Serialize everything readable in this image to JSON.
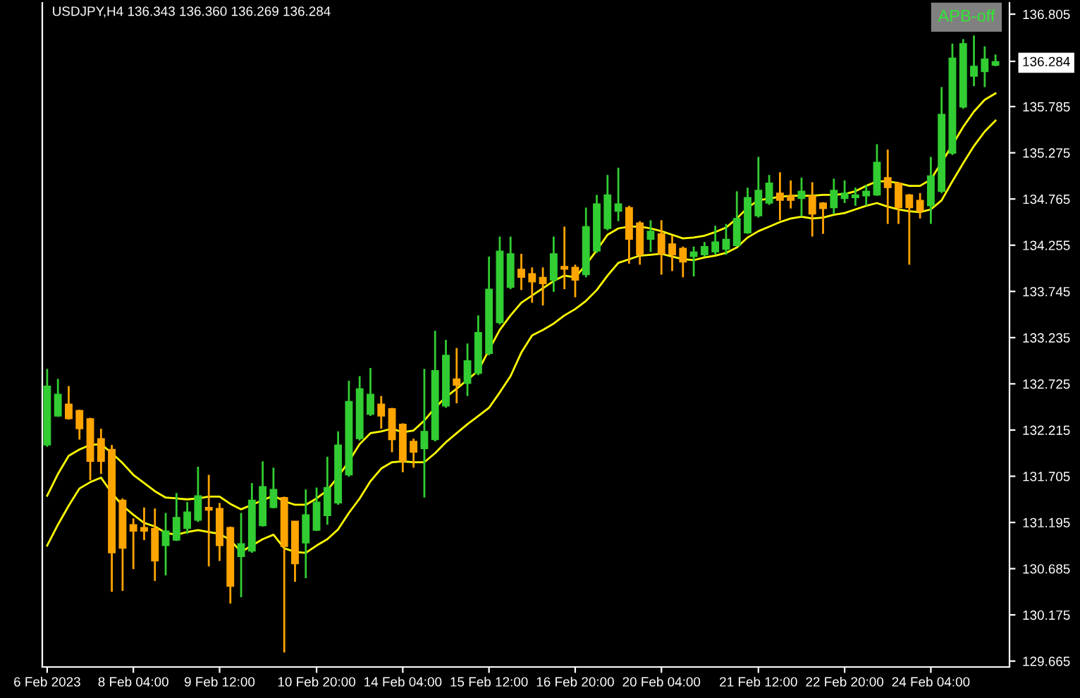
{
  "chart_data": {
    "type": "candlestick",
    "title": "USDJPY,H4 136.343 136.360 136.269 136.284",
    "annotations": [
      "APB-off"
    ],
    "categories": [
      "6 Feb 2023",
      null,
      null,
      null,
      null,
      null,
      null,
      null,
      "8 Feb 04:00",
      null,
      null,
      null,
      null,
      null,
      null,
      null,
      "9 Feb 12:00",
      null,
      null,
      null,
      null,
      null,
      null,
      null,
      null,
      "10 Feb 20:00",
      null,
      null,
      null,
      null,
      null,
      null,
      null,
      "14 Feb 04:00",
      null,
      null,
      null,
      null,
      null,
      null,
      null,
      "15 Feb 12:00",
      null,
      null,
      null,
      null,
      null,
      null,
      null,
      "16 Feb 20:00",
      null,
      null,
      null,
      null,
      null,
      null,
      null,
      "20 Feb 04:00",
      null,
      null,
      null,
      null,
      null,
      null,
      null,
      null,
      "21 Feb 12:00",
      null,
      null,
      null,
      null,
      null,
      null,
      null,
      "22 Feb 20:00",
      null,
      null,
      null,
      null,
      null,
      null,
      null,
      "24 Feb 04:00",
      null,
      null,
      null,
      null,
      null,
      null
    ],
    "ohlc": [
      [
        132.05,
        132.89,
        132.03,
        132.7
      ],
      [
        132.37,
        132.78,
        132.36,
        132.61
      ],
      [
        132.5,
        132.7,
        132.33,
        132.34
      ],
      [
        132.43,
        132.44,
        132.11,
        132.23
      ],
      [
        132.34,
        132.35,
        131.66,
        131.87
      ],
      [
        132.12,
        132.23,
        131.73,
        131.87
      ],
      [
        132.0,
        132.05,
        130.43,
        130.86
      ],
      [
        131.44,
        131.46,
        130.44,
        130.91
      ],
      [
        131.17,
        131.24,
        130.68,
        131.1
      ],
      [
        131.14,
        131.36,
        131.0,
        131.1
      ],
      [
        131.13,
        131.35,
        130.55,
        130.77
      ],
      [
        130.94,
        131.3,
        130.61,
        131.1
      ],
      [
        131.0,
        131.52,
        130.99,
        131.25
      ],
      [
        131.13,
        131.42,
        131.07,
        131.31
      ],
      [
        131.22,
        131.81,
        131.2,
        131.49
      ],
      [
        131.36,
        131.72,
        130.71,
        131.33
      ],
      [
        131.35,
        131.41,
        130.77,
        130.94
      ],
      [
        131.14,
        131.15,
        130.3,
        130.49
      ],
      [
        130.82,
        131.3,
        130.37,
        130.96
      ],
      [
        130.88,
        131.63,
        130.86,
        131.44
      ],
      [
        131.16,
        131.87,
        131.15,
        131.59
      ],
      [
        131.36,
        131.8,
        131.35,
        131.56
      ],
      [
        131.47,
        131.48,
        129.76,
        130.93
      ],
      [
        131.21,
        131.21,
        130.54,
        130.74
      ],
      [
        130.97,
        131.56,
        130.58,
        131.28
      ],
      [
        131.11,
        131.58,
        131.1,
        131.42
      ],
      [
        131.27,
        131.92,
        131.17,
        131.58
      ],
      [
        131.41,
        132.2,
        131.39,
        132.05
      ],
      [
        131.72,
        132.76,
        131.7,
        132.53
      ],
      [
        132.12,
        132.81,
        132.1,
        132.67
      ],
      [
        132.39,
        132.9,
        132.37,
        132.61
      ],
      [
        132.5,
        132.59,
        132.23,
        132.37
      ],
      [
        132.45,
        132.46,
        131.97,
        132.11
      ],
      [
        132.28,
        132.29,
        131.75,
        131.87
      ],
      [
        132.09,
        132.12,
        131.8,
        131.97
      ],
      [
        132.01,
        132.89,
        131.47,
        132.2
      ],
      [
        132.11,
        133.31,
        132.09,
        132.87
      ],
      [
        132.48,
        133.21,
        132.46,
        133.04
      ],
      [
        132.78,
        133.12,
        132.51,
        132.71
      ],
      [
        132.73,
        133.17,
        132.59,
        132.98
      ],
      [
        132.84,
        133.48,
        132.82,
        133.29
      ],
      [
        133.06,
        134.13,
        133.04,
        133.77
      ],
      [
        133.4,
        134.35,
        133.38,
        134.19
      ],
      [
        133.79,
        134.35,
        133.77,
        134.16
      ],
      [
        133.99,
        134.16,
        133.76,
        133.9
      ],
      [
        133.94,
        134.01,
        133.62,
        133.85
      ],
      [
        133.9,
        134.01,
        133.59,
        133.83
      ],
      [
        133.87,
        134.35,
        133.74,
        134.16
      ],
      [
        134.02,
        134.46,
        133.77,
        133.99
      ],
      [
        134.01,
        134.04,
        133.68,
        133.87
      ],
      [
        133.93,
        134.67,
        133.9,
        134.46
      ],
      [
        134.19,
        134.81,
        134.17,
        134.71
      ],
      [
        134.44,
        135.03,
        134.42,
        134.81
      ],
      [
        134.63,
        135.11,
        134.52,
        134.71
      ],
      [
        134.67,
        134.69,
        134.05,
        134.32
      ],
      [
        134.5,
        134.52,
        134.04,
        134.15
      ],
      [
        134.32,
        134.53,
        134.18,
        134.41
      ],
      [
        134.38,
        134.53,
        133.93,
        134.16
      ],
      [
        134.27,
        134.36,
        133.97,
        134.15
      ],
      [
        134.22,
        134.24,
        133.9,
        134.07
      ],
      [
        134.13,
        134.24,
        133.91,
        134.18
      ],
      [
        134.15,
        134.29,
        134.13,
        134.24
      ],
      [
        134.18,
        134.47,
        134.15,
        134.29
      ],
      [
        134.21,
        134.49,
        134.15,
        134.32
      ],
      [
        134.25,
        134.85,
        134.24,
        134.55
      ],
      [
        134.39,
        134.89,
        134.38,
        134.78
      ],
      [
        134.58,
        135.23,
        134.56,
        134.86
      ],
      [
        134.72,
        135.03,
        134.7,
        134.94
      ],
      [
        134.83,
        135.06,
        134.53,
        134.75
      ],
      [
        134.8,
        134.97,
        134.66,
        134.75
      ],
      [
        134.77,
        135.0,
        134.57,
        134.85
      ],
      [
        134.8,
        134.95,
        134.35,
        134.6
      ],
      [
        134.72,
        134.73,
        134.38,
        134.66
      ],
      [
        134.67,
        134.99,
        134.6,
        134.86
      ],
      [
        134.77,
        134.97,
        134.72,
        134.83
      ],
      [
        134.78,
        134.89,
        134.69,
        134.81
      ],
      [
        134.8,
        134.92,
        134.69,
        134.85
      ],
      [
        134.81,
        135.37,
        134.8,
        135.17
      ],
      [
        135.0,
        135.31,
        134.49,
        134.89
      ],
      [
        134.94,
        134.95,
        134.49,
        134.67
      ],
      [
        134.81,
        134.82,
        134.04,
        134.67
      ],
      [
        134.75,
        134.83,
        134.55,
        134.63
      ],
      [
        134.69,
        135.23,
        134.49,
        135.02
      ],
      [
        134.85,
        136.0,
        134.83,
        135.7
      ],
      [
        135.27,
        136.48,
        135.25,
        136.32
      ],
      [
        135.78,
        136.53,
        135.76,
        136.48
      ],
      [
        136.12,
        136.57,
        136.01,
        136.23
      ],
      [
        136.17,
        136.45,
        136.0,
        136.31
      ],
      [
        136.24,
        136.36,
        136.23,
        136.28
      ]
    ],
    "colors": [
      "#32cd32",
      "#32cd32",
      "#ffa500",
      "#ffa500",
      "#ffa500",
      "#ffa500",
      "#ffa500",
      "#ffa500",
      "#ffa500",
      "#ffa500",
      "#ffa500",
      "#32cd32",
      "#32cd32",
      "#32cd32",
      "#32cd32",
      "#ffa500",
      "#ffa500",
      "#ffa500",
      "#32cd32",
      "#32cd32",
      "#32cd32",
      "#32cd32",
      "#ffa500",
      "#ffa500",
      "#32cd32",
      "#32cd32",
      "#32cd32",
      "#32cd32",
      "#32cd32",
      "#32cd32",
      "#32cd32",
      "#ffa500",
      "#ffa500",
      "#ffa500",
      "#ffa500",
      "#32cd32",
      "#32cd32",
      "#32cd32",
      "#ffa500",
      "#32cd32",
      "#32cd32",
      "#32cd32",
      "#32cd32",
      "#32cd32",
      "#ffa500",
      "#ffa500",
      "#ffa500",
      "#32cd32",
      "#ffa500",
      "#ffa500",
      "#32cd32",
      "#32cd32",
      "#32cd32",
      "#32cd32",
      "#ffa500",
      "#ffa500",
      "#32cd32",
      "#ffa500",
      "#ffa500",
      "#ffa500",
      "#32cd32",
      "#32cd32",
      "#32cd32",
      "#32cd32",
      "#32cd32",
      "#32cd32",
      "#32cd32",
      "#32cd32",
      "#ffa500",
      "#ffa500",
      "#32cd32",
      "#ffa500",
      "#ffa500",
      "#32cd32",
      "#32cd32",
      "#32cd32",
      "#32cd32",
      "#32cd32",
      "#ffa500",
      "#ffa500",
      "#ffa500",
      "#ffa500",
      "#32cd32",
      "#32cd32",
      "#32cd32",
      "#32cd32",
      "#32cd32",
      "#32cd32",
      "#32cd32"
    ],
    "series": [
      {
        "type": "line",
        "color": "#ffff00",
        "values": [
          131.49,
          131.73,
          131.93,
          132.0,
          132.05,
          132.06,
          131.96,
          131.85,
          131.72,
          131.63,
          131.54,
          131.47,
          131.46,
          131.45,
          131.46,
          131.48,
          131.48,
          131.4,
          131.34,
          131.39,
          131.44,
          131.49,
          131.43,
          131.39,
          131.39,
          131.46,
          131.55,
          131.7,
          131.87,
          132.06,
          132.18,
          132.2,
          132.23,
          132.19,
          132.21,
          132.32,
          132.46,
          132.58,
          132.67,
          132.77,
          132.87,
          133.1,
          133.32,
          133.48,
          133.62,
          133.7,
          133.78,
          133.86,
          133.92,
          133.9,
          134.04,
          134.2,
          134.37,
          134.44,
          134.46,
          134.46,
          134.44,
          134.41,
          134.37,
          134.33,
          134.34,
          134.36,
          134.4,
          134.45,
          134.55,
          134.67,
          134.75,
          134.77,
          134.79,
          134.8,
          134.8,
          134.8,
          134.81,
          134.81,
          134.82,
          134.85,
          134.91,
          134.96,
          134.96,
          134.94,
          134.91,
          134.91,
          134.98,
          135.17,
          135.36,
          135.56,
          135.73,
          135.86,
          135.93
        ]
      },
      {
        "type": "line",
        "color": "#ffff00",
        "values": [
          130.94,
          131.17,
          131.38,
          131.57,
          131.64,
          131.69,
          131.52,
          131.38,
          131.28,
          131.19,
          131.15,
          131.08,
          131.06,
          131.09,
          131.11,
          131.09,
          131.07,
          131.0,
          130.87,
          130.94,
          131.01,
          131.06,
          130.91,
          130.87,
          130.86,
          130.94,
          131.01,
          131.12,
          131.3,
          131.46,
          131.65,
          131.79,
          131.86,
          131.87,
          131.86,
          131.86,
          131.96,
          132.08,
          132.18,
          132.28,
          132.37,
          132.46,
          132.63,
          132.81,
          133.07,
          133.26,
          133.32,
          133.39,
          133.48,
          133.55,
          133.64,
          133.76,
          133.92,
          134.06,
          134.1,
          134.14,
          134.15,
          134.16,
          134.13,
          134.1,
          134.09,
          134.12,
          134.14,
          134.17,
          134.23,
          134.34,
          134.41,
          134.46,
          134.51,
          134.55,
          134.57,
          134.55,
          134.56,
          134.59,
          134.61,
          134.65,
          134.69,
          134.72,
          134.68,
          134.65,
          134.63,
          134.62,
          134.65,
          134.75,
          134.96,
          135.16,
          135.35,
          135.51,
          135.63
        ]
      }
    ],
    "ylim": [
      129.6,
      136.93
    ],
    "yticks": [
      136.805,
      {
        "value": 136.284,
        "label": "136.284"
      },
      135.785,
      135.275,
      134.765,
      134.255,
      133.745,
      133.235,
      132.725,
      132.215,
      131.705,
      131.195,
      130.685,
      130.175,
      129.665
    ],
    "grid": false,
    "legend": false
  }
}
